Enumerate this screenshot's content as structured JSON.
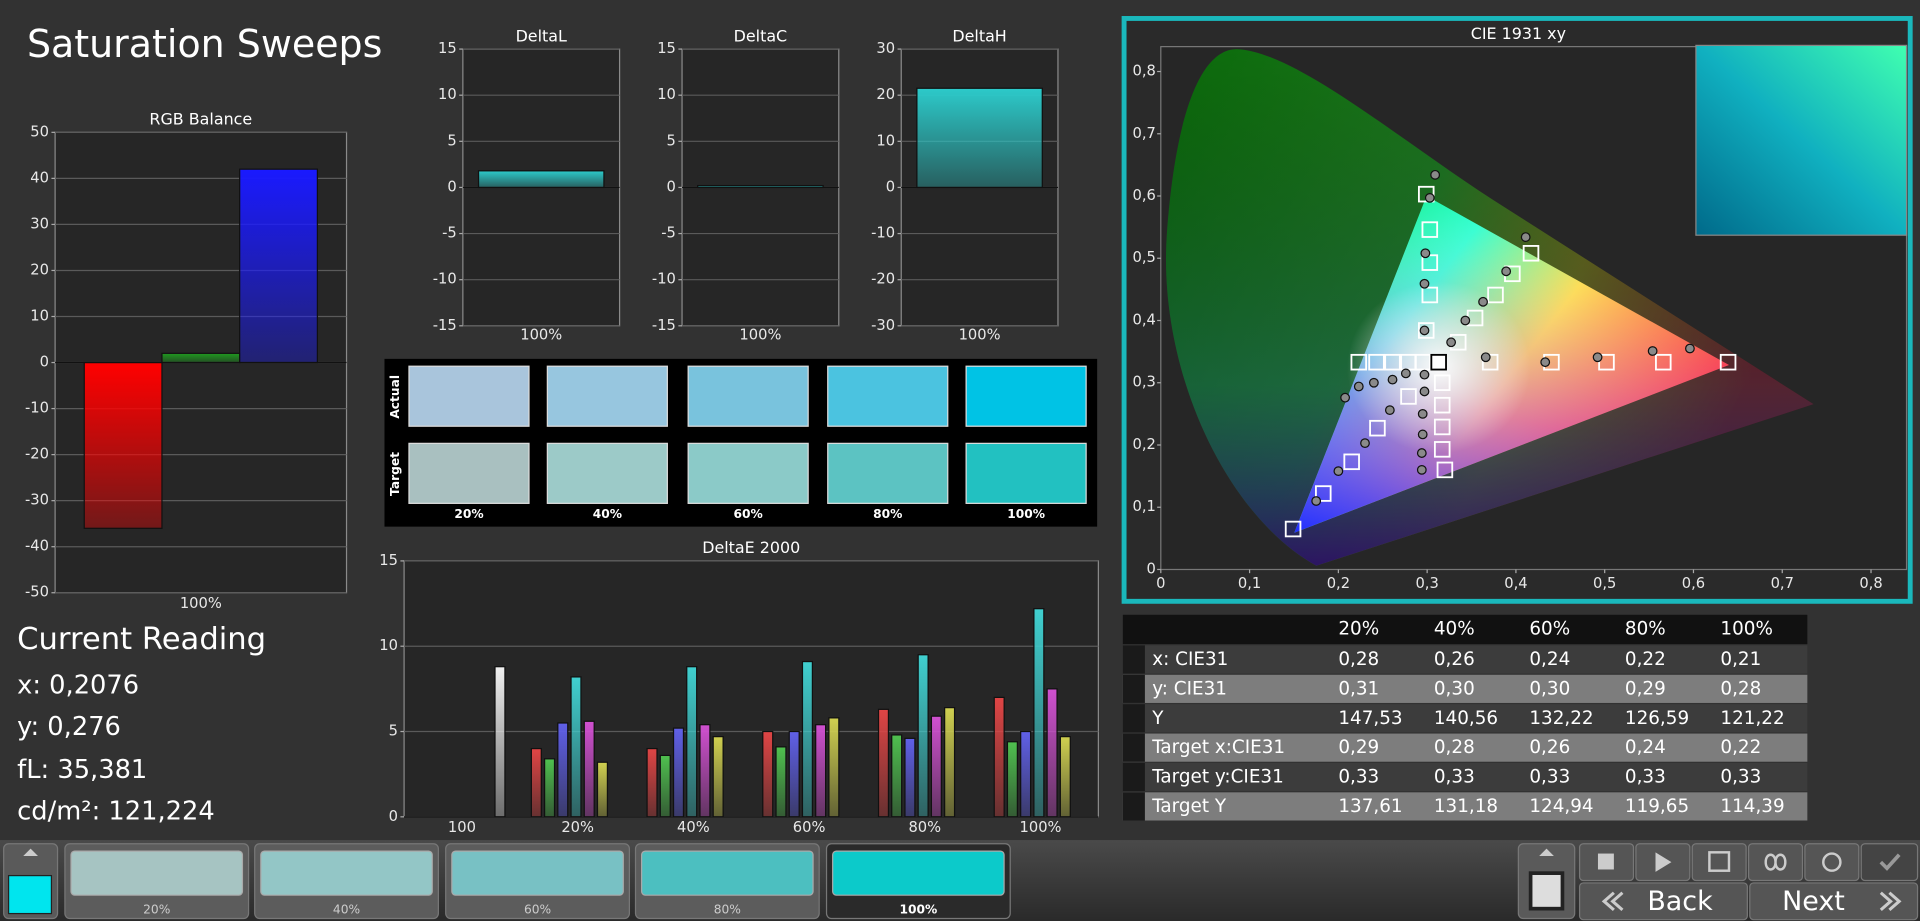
{
  "title": "Saturation Sweeps",
  "chart_data": [
    {
      "type": "bar",
      "title": "RGB Balance",
      "categories": [
        "100%"
      ],
      "series": [
        {
          "color": "#ff0000",
          "values": [
            -36
          ]
        },
        {
          "color": "#1f9a1f",
          "values": [
            2
          ]
        },
        {
          "color": "#1a1aff",
          "values": [
            42
          ]
        }
      ],
      "ylim": [
        -50,
        50
      ],
      "yticks": [
        -50,
        -40,
        -30,
        -20,
        -10,
        0,
        10,
        20,
        30,
        40,
        50
      ],
      "grid": true
    },
    {
      "type": "bar",
      "title": "DeltaL",
      "categories": [
        "100%"
      ],
      "values": [
        1.8
      ],
      "color": "#2ccaca",
      "ylim": [
        -15,
        15
      ],
      "yticks": [
        -15,
        -10,
        -5,
        0,
        5,
        10,
        15
      ],
      "grid": true
    },
    {
      "type": "bar",
      "title": "DeltaC",
      "categories": [
        "100%"
      ],
      "values": [
        0.2
      ],
      "color": "#2ccaca",
      "ylim": [
        -15,
        15
      ],
      "yticks": [
        -15,
        -10,
        -5,
        0,
        5,
        10,
        15
      ],
      "grid": true
    },
    {
      "type": "bar",
      "title": "DeltaH",
      "categories": [
        "100%"
      ],
      "values": [
        21.5
      ],
      "color": "#2ccaca",
      "ylim": [
        -30,
        30
      ],
      "yticks": [
        -30,
        -20,
        -10,
        0,
        10,
        20,
        30
      ],
      "grid": true
    },
    {
      "type": "bar",
      "title": "DeltaE 2000",
      "categories": [
        "100",
        "20%",
        "40%",
        "60%",
        "80%",
        "100%"
      ],
      "series": [
        {
          "color": "#e04545",
          "values": [
            null,
            4.0,
            4.0,
            5.0,
            6.3,
            7.0
          ]
        },
        {
          "color": "#4fc04f",
          "values": [
            null,
            3.4,
            3.6,
            4.1,
            4.8,
            4.4
          ]
        },
        {
          "color": "#6060e8",
          "values": [
            null,
            5.5,
            5.2,
            5.0,
            4.6,
            5.0
          ]
        },
        {
          "color": "#40d0d0",
          "values": [
            null,
            8.2,
            8.8,
            9.1,
            9.5,
            12.2
          ]
        },
        {
          "color": "#d050d0",
          "values": [
            null,
            5.6,
            5.4,
            5.4,
            5.9,
            7.5
          ]
        },
        {
          "color": "#d0d050",
          "values": [
            null,
            3.2,
            4.7,
            5.8,
            6.4,
            4.7
          ]
        },
        {
          "color": "#f0f0f0",
          "values": [
            8.8,
            null,
            null,
            null,
            null,
            null
          ]
        }
      ],
      "ylim": [
        0,
        15
      ],
      "yticks": [
        0,
        5,
        10,
        15
      ],
      "grid": true
    },
    {
      "type": "scatter",
      "title": "CIE 1931 xy",
      "xlim": [
        0,
        0.84
      ],
      "ylim": [
        0,
        0.84
      ],
      "xticks": [
        0,
        {
          "value": 0.1,
          "label": "0,1"
        },
        {
          "value": 0.2,
          "label": "0,2"
        },
        {
          "value": 0.3,
          "label": "0,3"
        },
        {
          "value": 0.4,
          "label": "0,4"
        },
        {
          "value": 0.5,
          "label": "0,5"
        },
        {
          "value": 0.6,
          "label": "0,6"
        },
        {
          "value": 0.7,
          "label": "0,7"
        },
        {
          "value": 0.8,
          "label": "0,8"
        }
      ],
      "yticks": [
        0,
        {
          "value": 0.1,
          "label": "0,1"
        },
        {
          "value": 0.2,
          "label": "0,2"
        },
        {
          "value": 0.3,
          "label": "0,3"
        },
        {
          "value": 0.4,
          "label": "0,4"
        },
        {
          "value": 0.5,
          "label": "0,5"
        },
        {
          "value": 0.6,
          "label": "0,6"
        },
        {
          "value": 0.7,
          "label": "0,7"
        },
        {
          "value": 0.8,
          "label": "0,8"
        }
      ],
      "grid": false,
      "series": [
        {
          "marker": "square",
          "color": "#ffffff",
          "x": [
            0.371,
            0.44,
            0.502,
            0.566,
            0.639,
            0.299,
            0.303,
            0.303,
            0.303,
            0.299,
            0.279,
            0.244,
            0.215,
            0.183,
            0.149,
            0.295,
            0.279,
            0.261,
            0.243,
            0.223,
            0.317,
            0.317,
            0.317,
            0.317,
            0.32,
            0.335,
            0.354,
            0.377,
            0.396,
            0.417
          ],
          "values": [
            0.333,
            0.333,
            0.333,
            0.333,
            0.333,
            0.384,
            0.441,
            0.493,
            0.546,
            0.603,
            0.278,
            0.227,
            0.173,
            0.122,
            0.065,
            0.333,
            0.333,
            0.333,
            0.333,
            0.333,
            0.3,
            0.264,
            0.229,
            0.193,
            0.16,
            0.365,
            0.404,
            0.441,
            0.475,
            0.508
          ]
        },
        {
          "marker": "circle",
          "color": "#8a8a8a",
          "x": [
            0.366,
            0.433,
            0.492,
            0.554,
            0.596,
            0.297,
            0.297,
            0.298,
            0.303,
            0.309,
            0.276,
            0.258,
            0.23,
            0.2,
            0.175,
            0.297,
            0.261,
            0.24,
            0.223,
            0.2076,
            0.297,
            0.295,
            0.295,
            0.294,
            0.294,
            0.327,
            0.343,
            0.363,
            0.389,
            0.411
          ],
          "values": [
            0.341,
            0.333,
            0.341,
            0.351,
            0.355,
            0.384,
            0.459,
            0.508,
            0.597,
            0.634,
            0.315,
            0.256,
            0.203,
            0.158,
            0.11,
            0.313,
            0.305,
            0.3,
            0.294,
            0.276,
            0.286,
            0.25,
            0.217,
            0.187,
            0.16,
            0.365,
            0.4,
            0.43,
            0.479,
            0.534
          ]
        },
        {
          "marker": "square",
          "color": "#000000",
          "fill": "#ffffff",
          "x": [
            0.313
          ],
          "values": [
            0.333
          ]
        }
      ]
    }
  ],
  "swatches": {
    "columns": [
      "20%",
      "40%",
      "60%",
      "80%",
      "100%"
    ],
    "rows": [
      {
        "label": "Actual",
        "colors": [
          "#a9c5dc",
          "#97c6df",
          "#79c3dd",
          "#4bc3e0",
          "#00c3e5"
        ]
      },
      {
        "label": "Target",
        "colors": [
          "#a9c0c0",
          "#9ccac8",
          "#8bcac8",
          "#5cc3c2",
          "#22c1c1"
        ]
      }
    ]
  },
  "current_reading": {
    "title": "Current Reading",
    "lines": [
      "x: 0,2076",
      "y: 0,276",
      "fL: 35,381",
      "cd/m²: 121,224"
    ]
  },
  "table": {
    "header": [
      "20%",
      "40%",
      "60%",
      "80%",
      "100%"
    ],
    "rows": [
      {
        "label": "x: CIE31",
        "values": [
          "0,28",
          "0,26",
          "0,24",
          "0,22",
          "0,21"
        ]
      },
      {
        "label": "y: CIE31",
        "values": [
          "0,31",
          "0,30",
          "0,30",
          "0,29",
          "0,28"
        ]
      },
      {
        "label": "Y",
        "values": [
          "147,53",
          "140,56",
          "132,22",
          "126,59",
          "121,22"
        ]
      },
      {
        "label": "Target x:CIE31",
        "values": [
          "0,29",
          "0,28",
          "0,26",
          "0,24",
          "0,22"
        ]
      },
      {
        "label": "Target y:CIE31",
        "values": [
          "0,33",
          "0,33",
          "0,33",
          "0,33",
          "0,33"
        ]
      },
      {
        "label": "Target Y",
        "values": [
          "137,61",
          "131,18",
          "124,94",
          "119,65",
          "114,39"
        ]
      }
    ]
  },
  "bottom_bar": {
    "current_color": "#00e5ee",
    "active": 4,
    "thumbnails": [
      {
        "label": "20%",
        "color": "#a6c4c2"
      },
      {
        "label": "40%",
        "color": "#93c6c6"
      },
      {
        "label": "60%",
        "color": "#78c1c4"
      },
      {
        "label": "80%",
        "color": "#4cbfc0"
      },
      {
        "label": "100%",
        "color": "#0ccaca"
      }
    ],
    "buttons": [
      "Back",
      "Next"
    ]
  }
}
